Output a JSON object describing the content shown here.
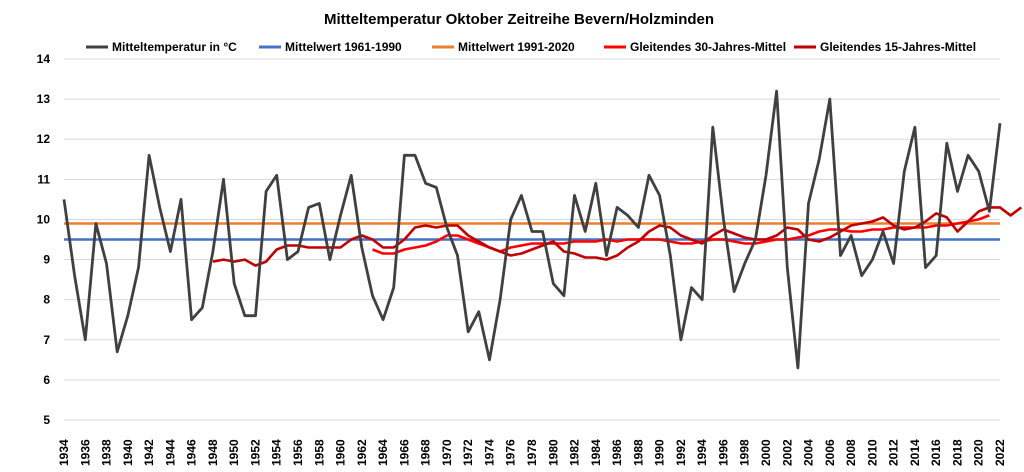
{
  "chart_data": {
    "type": "line",
    "title": "Mitteltemperatur Oktober Zeitreihe Bevern/Holzminden",
    "xlabel": "",
    "ylabel": "",
    "x_range": [
      1934,
      2022
    ],
    "ylim": [
      5,
      14
    ],
    "y_ticks": [
      5,
      6,
      7,
      8,
      9,
      10,
      11,
      12,
      13,
      14
    ],
    "x_ticks": [
      1934,
      1936,
      1938,
      1940,
      1942,
      1944,
      1946,
      1948,
      1950,
      1952,
      1954,
      1956,
      1958,
      1960,
      1962,
      1964,
      1966,
      1968,
      1970,
      1972,
      1974,
      1976,
      1978,
      1980,
      1982,
      1984,
      1986,
      1988,
      1990,
      1992,
      1994,
      1996,
      1998,
      2000,
      2002,
      2004,
      2006,
      2008,
      2010,
      2012,
      2014,
      2016,
      2018,
      2020,
      2022
    ],
    "grid": true,
    "legend_position": "top",
    "series": [
      {
        "name": "Mitteltemperatur in °C",
        "color": "#404040",
        "start_year": 1934,
        "values": [
          10.5,
          8.6,
          7.0,
          9.9,
          8.9,
          6.7,
          7.6,
          8.8,
          11.6,
          10.3,
          9.2,
          10.5,
          7.5,
          7.8,
          9.2,
          11.0,
          8.4,
          7.6,
          7.6,
          10.7,
          11.1,
          9.0,
          9.2,
          10.3,
          10.4,
          9.0,
          10.1,
          11.1,
          9.3,
          8.1,
          7.5,
          8.3,
          11.6,
          11.6,
          10.9,
          10.8,
          9.8,
          9.1,
          7.2,
          7.7,
          6.5,
          8.0,
          10.0,
          10.6,
          9.7,
          9.7,
          8.4,
          8.1,
          10.6,
          9.7,
          10.9,
          9.1,
          10.3,
          10.1,
          9.8,
          11.1,
          10.6,
          9.1,
          7.0,
          8.3,
          8.0,
          12.3,
          10.0,
          8.2,
          8.9,
          9.5,
          11.1,
          13.2,
          8.8,
          6.3,
          10.4,
          11.5,
          13.0,
          9.1,
          9.6,
          8.6,
          9.0,
          9.7,
          8.9,
          11.2,
          12.3,
          8.8,
          9.1,
          11.9,
          10.7,
          11.6,
          11.2,
          10.2,
          12.4
        ]
      },
      {
        "name": "Mittelwert 1961-1990",
        "color": "#4472c4",
        "constant": 9.5
      },
      {
        "name": "Mittelwert 1991-2020",
        "color": "#ed7d31",
        "constant": 9.9
      },
      {
        "name": "Gleitendes 30-Jahres-Mittel",
        "color": "#ff0000",
        "start_year": 1963,
        "values": [
          9.25,
          9.15,
          9.15,
          9.25,
          9.3,
          9.35,
          9.45,
          9.6,
          9.6,
          9.5,
          9.4,
          9.3,
          9.2,
          9.3,
          9.35,
          9.4,
          9.4,
          9.4,
          9.4,
          9.45,
          9.45,
          9.45,
          9.5,
          9.45,
          9.5,
          9.5,
          9.5,
          9.5,
          9.45,
          9.4,
          9.4,
          9.45,
          9.5,
          9.5,
          9.45,
          9.4,
          9.4,
          9.45,
          9.5,
          9.5,
          9.55,
          9.6,
          9.7,
          9.75,
          9.75,
          9.7,
          9.7,
          9.75,
          9.75,
          9.8,
          9.8,
          9.8,
          9.8,
          9.85,
          9.85,
          9.9,
          9.95,
          10.0,
          10.1
        ]
      },
      {
        "name": "Gleitendes 15-Jahres-Mittel",
        "color": "#c00000",
        "start_year": 1948,
        "values": [
          8.95,
          9.0,
          8.95,
          9.0,
          8.85,
          8.95,
          9.25,
          9.35,
          9.35,
          9.3,
          9.3,
          9.3,
          9.3,
          9.5,
          9.6,
          9.5,
          9.3,
          9.3,
          9.5,
          9.8,
          9.85,
          9.8,
          9.85,
          9.85,
          9.6,
          9.45,
          9.3,
          9.2,
          9.1,
          9.15,
          9.25,
          9.35,
          9.45,
          9.2,
          9.15,
          9.05,
          9.05,
          9.0,
          9.1,
          9.3,
          9.45,
          9.7,
          9.85,
          9.8,
          9.6,
          9.5,
          9.4,
          9.6,
          9.75,
          9.65,
          9.55,
          9.5,
          9.5,
          9.6,
          9.8,
          9.75,
          9.5,
          9.45,
          9.55,
          9.7,
          9.85,
          9.9,
          9.95,
          10.05,
          9.85,
          9.75,
          9.8,
          9.95,
          10.15,
          10.05,
          9.7,
          9.95,
          10.2,
          10.3,
          10.3,
          10.1,
          10.3
        ]
      }
    ]
  }
}
